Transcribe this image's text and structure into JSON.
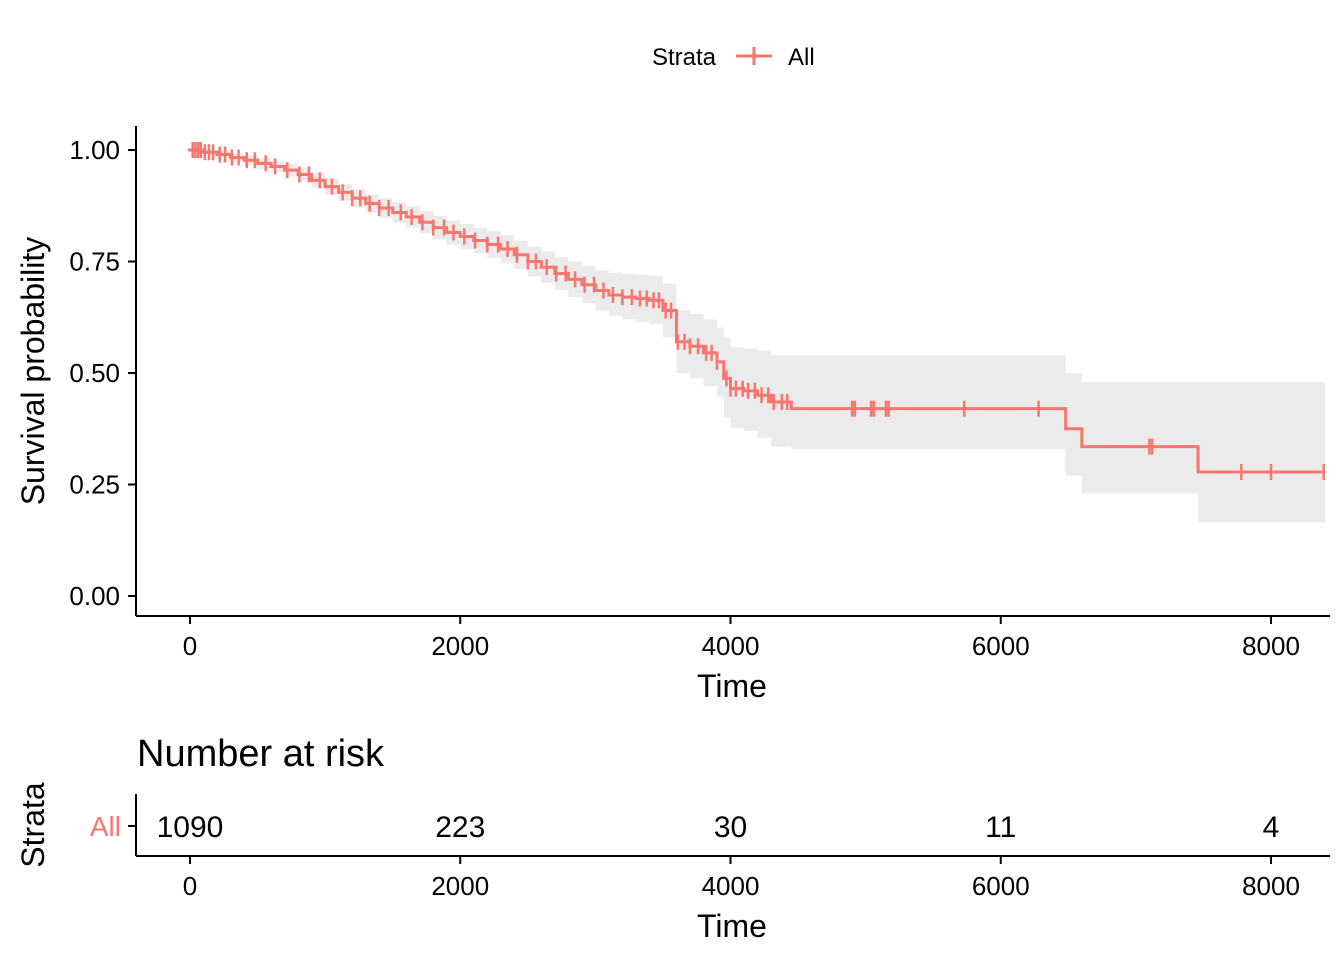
{
  "chart_data": [
    {
      "type": "line",
      "subtype": "kaplan-meier",
      "title": "",
      "xlabel": "Time",
      "ylabel": "Survival probability",
      "xlim": [
        -400,
        8400
      ],
      "ylim": [
        -0.05,
        1.05
      ],
      "xticks": [
        0,
        2000,
        4000,
        6000,
        8000
      ],
      "xtick_labels": [
        "0",
        "2000",
        "4000",
        "6000",
        "8000"
      ],
      "yticks": [
        0,
        0.25,
        0.5,
        0.75,
        1
      ],
      "ytick_labels": [
        "0.00",
        "0.25",
        "0.50",
        "0.75",
        "1.00"
      ],
      "grid": false,
      "legend": {
        "placement": "top",
        "title": "Strata",
        "entries": [
          "All"
        ]
      },
      "color": "#F8766D",
      "ci_color": "#EBEBEB",
      "series": [
        {
          "name": "All",
          "step_x": [
            0,
            100,
            200,
            300,
            400,
            500,
            600,
            700,
            800,
            900,
            1000,
            1100,
            1200,
            1300,
            1400,
            1500,
            1600,
            1700,
            1800,
            1900,
            2000,
            2100,
            2200,
            2300,
            2400,
            2500,
            2600,
            2700,
            2800,
            2900,
            3000,
            3100,
            3200,
            3300,
            3400,
            3500,
            3600,
            3700,
            3800,
            3900,
            3950,
            4000,
            4100,
            4200,
            4300,
            4450,
            6480,
            6600,
            7460
          ],
          "step_y": [
            1.0,
            0.995,
            0.99,
            0.983,
            0.977,
            0.97,
            0.963,
            0.955,
            0.945,
            0.932,
            0.918,
            0.905,
            0.892,
            0.88,
            0.87,
            0.86,
            0.85,
            0.838,
            0.826,
            0.815,
            0.806,
            0.797,
            0.788,
            0.778,
            0.765,
            0.75,
            0.737,
            0.723,
            0.71,
            0.698,
            0.685,
            0.675,
            0.67,
            0.667,
            0.663,
            0.64,
            0.57,
            0.56,
            0.545,
            0.525,
            0.488,
            0.465,
            0.46,
            0.45,
            0.435,
            0.42,
            0.375,
            0.335,
            0.278
          ],
          "upper": [
            1.0,
            1.0,
            0.997,
            0.992,
            0.987,
            0.982,
            0.976,
            0.969,
            0.96,
            0.948,
            0.936,
            0.924,
            0.912,
            0.9,
            0.892,
            0.883,
            0.874,
            0.863,
            0.852,
            0.842,
            0.834,
            0.826,
            0.818,
            0.809,
            0.797,
            0.783,
            0.772,
            0.76,
            0.75,
            0.74,
            0.73,
            0.725,
            0.722,
            0.72,
            0.718,
            0.7,
            0.64,
            0.632,
            0.62,
            0.602,
            0.58,
            0.558,
            0.555,
            0.55,
            0.54,
            0.54,
            0.5,
            0.48,
            0.48
          ],
          "lower": [
            1.0,
            0.99,
            0.983,
            0.974,
            0.967,
            0.958,
            0.95,
            0.941,
            0.93,
            0.916,
            0.9,
            0.886,
            0.872,
            0.86,
            0.848,
            0.837,
            0.826,
            0.813,
            0.8,
            0.788,
            0.778,
            0.768,
            0.758,
            0.747,
            0.733,
            0.717,
            0.702,
            0.686,
            0.67,
            0.656,
            0.64,
            0.628,
            0.62,
            0.615,
            0.61,
            0.58,
            0.5,
            0.488,
            0.47,
            0.448,
            0.4,
            0.377,
            0.37,
            0.355,
            0.335,
            0.33,
            0.27,
            0.23,
            0.165
          ],
          "x_end": 8400,
          "censor_x": [
            20,
            40,
            60,
            80,
            110,
            140,
            170,
            220,
            260,
            310,
            360,
            420,
            480,
            560,
            630,
            720,
            810,
            880,
            960,
            1050,
            1130,
            1200,
            1260,
            1330,
            1400,
            1470,
            1560,
            1640,
            1720,
            1800,
            1880,
            1950,
            2030,
            2110,
            2200,
            2280,
            2350,
            2420,
            2500,
            2560,
            2640,
            2710,
            2780,
            2850,
            2920,
            2990,
            3060,
            3130,
            3200,
            3270,
            3330,
            3380,
            3430,
            3470,
            3520,
            3560,
            3610,
            3660,
            3700,
            3760,
            3820,
            3860,
            3900,
            3970,
            4000,
            4040,
            4090,
            4130,
            4180,
            4230,
            4280,
            4320,
            4380,
            4420,
            4900,
            4920,
            5040,
            5060,
            5150,
            5170,
            5730,
            6280,
            7100,
            7120,
            7780,
            8000,
            8390
          ]
        }
      ]
    },
    {
      "type": "table",
      "title": "Number at risk",
      "xlabel": "Time",
      "ylabel": "Strata",
      "xlim": [
        -400,
        8400
      ],
      "xticks": [
        0,
        2000,
        4000,
        6000,
        8000
      ],
      "xtick_labels": [
        "0",
        "2000",
        "4000",
        "6000",
        "8000"
      ],
      "rows": [
        {
          "strata": "All",
          "times": [
            0,
            2000,
            4000,
            6000,
            8000
          ],
          "counts": [
            "1090",
            "223",
            "30",
            "11",
            "4"
          ]
        }
      ]
    }
  ]
}
